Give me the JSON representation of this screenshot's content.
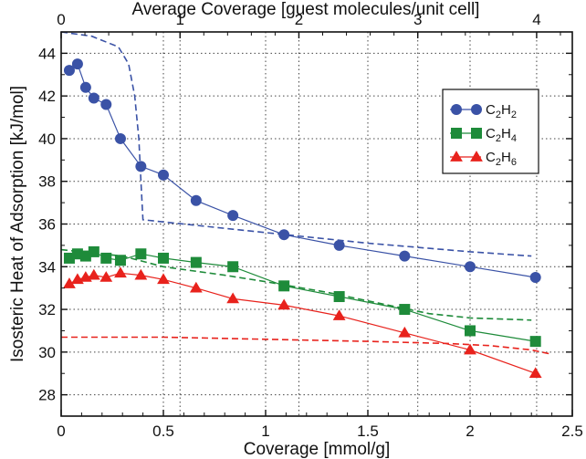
{
  "chart_data": {
    "type": "line",
    "xlabel": "Coverage  [mmol/g]",
    "x2label": "Average Coverage  [guest molecules/unit cell]",
    "ylabel": "Isosteric Heat of Adsorption  [kJ/mol]",
    "xlim": [
      0,
      2.5
    ],
    "ylim": [
      27,
      45
    ],
    "x2lim": [
      0,
      4.3
    ],
    "xticks": [
      0,
      0.5,
      1,
      1.5,
      2,
      2.5
    ],
    "xtick_labels": [
      "0",
      "0.5",
      "1",
      "1.5",
      "2",
      "2.5"
    ],
    "x2ticks": [
      0,
      1,
      2,
      3,
      4
    ],
    "x2tick_labels": [
      "0",
      "1",
      "2",
      "3",
      "4"
    ],
    "yticks": [
      28,
      30,
      32,
      34,
      36,
      38,
      40,
      42,
      44
    ],
    "ytick_labels": [
      "28",
      "30",
      "32",
      "34",
      "36",
      "38",
      "40",
      "42",
      "44"
    ],
    "grid": true,
    "legend_position": "top-right",
    "legend": [
      {
        "base": "C",
        "sub1": "2",
        "mid": "H",
        "sub2": "2"
      },
      {
        "base": "C",
        "sub1": "2",
        "mid": "H",
        "sub2": "4"
      },
      {
        "base": "C",
        "sub1": "2",
        "mid": "H",
        "sub2": "6"
      }
    ],
    "series": [
      {
        "name": "C2H2",
        "color": "#3a52a6",
        "marker": "circle",
        "x": [
          0.04,
          0.08,
          0.12,
          0.16,
          0.22,
          0.29,
          0.39,
          0.5,
          0.66,
          0.84,
          1.09,
          1.36,
          1.68,
          2.0,
          2.32
        ],
        "y": [
          43.2,
          43.5,
          42.4,
          41.9,
          41.6,
          40.0,
          38.7,
          38.3,
          37.1,
          36.4,
          35.5,
          35.0,
          34.5,
          34.0,
          33.5
        ]
      },
      {
        "name": "C2H4",
        "color": "#1e8b3a",
        "marker": "square",
        "x": [
          0.04,
          0.08,
          0.12,
          0.16,
          0.22,
          0.29,
          0.39,
          0.5,
          0.66,
          0.84,
          1.09,
          1.36,
          1.68,
          2.0,
          2.32
        ],
        "y": [
          34.4,
          34.6,
          34.5,
          34.7,
          34.4,
          34.3,
          34.6,
          34.4,
          34.2,
          34.0,
          33.1,
          32.6,
          32.0,
          31.0,
          30.5
        ]
      },
      {
        "name": "C2H6",
        "color": "#e8221c",
        "marker": "triangle",
        "x": [
          0.04,
          0.08,
          0.12,
          0.16,
          0.22,
          0.29,
          0.39,
          0.5,
          0.66,
          0.84,
          1.09,
          1.36,
          1.68,
          2.0,
          2.32
        ],
        "y": [
          33.2,
          33.4,
          33.5,
          33.6,
          33.5,
          33.7,
          33.6,
          33.4,
          33.0,
          32.5,
          32.2,
          31.7,
          30.9,
          30.1,
          29.0
        ]
      }
    ],
    "dashed_series": [
      {
        "color": "#3a52a6",
        "x": [
          0.0,
          0.15,
          0.28,
          0.33,
          0.36,
          0.38,
          0.39,
          0.4,
          0.5,
          1.0,
          1.5,
          2.0,
          2.3
        ],
        "y": [
          45.0,
          44.8,
          44.3,
          43.5,
          42.0,
          40.0,
          38.0,
          36.2,
          36.1,
          35.6,
          35.1,
          34.7,
          34.5
        ]
      },
      {
        "color": "#1e8b3a",
        "x": [
          0.0,
          0.3,
          0.5,
          0.8,
          1.0,
          1.3,
          1.6,
          1.8,
          2.0,
          2.3
        ],
        "y": [
          34.8,
          34.5,
          34.0,
          33.6,
          33.3,
          32.8,
          32.2,
          31.8,
          31.6,
          31.5
        ]
      },
      {
        "color": "#e8221c",
        "x": [
          0.0,
          0.5,
          1.0,
          1.5,
          1.9,
          2.1,
          2.3,
          2.4
        ],
        "y": [
          30.7,
          30.7,
          30.6,
          30.5,
          30.4,
          30.3,
          30.1,
          29.9
        ]
      }
    ]
  }
}
